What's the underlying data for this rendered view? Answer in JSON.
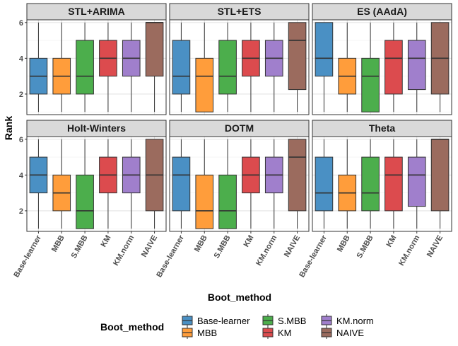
{
  "chart_data": {
    "type": "boxplot",
    "xlabel": "Boot_method",
    "ylabel": "Rank",
    "ylim": [
      0.85,
      6.15
    ],
    "yticks": [
      2,
      4,
      6
    ],
    "categories": [
      "Base-learner",
      "MBB",
      "S.MBB",
      "KM",
      "KM.norm",
      "NAIVE"
    ],
    "colors": [
      "#4a90c4",
      "#ff9d3b",
      "#4cae4c",
      "#dc4b4e",
      "#a07fcc",
      "#9b6b5e"
    ],
    "legend": {
      "title": "Boot_method",
      "position": "bottom",
      "entries": [
        "Base-learner",
        "MBB",
        "S.MBB",
        "KM",
        "KM.norm",
        "NAIVE"
      ]
    },
    "panels": [
      {
        "title": "STL+ARIMA",
        "boxes": [
          {
            "min": 1,
            "q1": 2,
            "median": 3,
            "q3": 4,
            "max": 6
          },
          {
            "min": 1,
            "q1": 2,
            "median": 3,
            "q3": 4,
            "max": 6
          },
          {
            "min": 1,
            "q1": 2,
            "median": 3,
            "q3": 5,
            "max": 6
          },
          {
            "min": 1,
            "q1": 3,
            "median": 4,
            "q3": 5,
            "max": 6
          },
          {
            "min": 1,
            "q1": 3,
            "median": 4,
            "q3": 5,
            "max": 6
          },
          {
            "min": 1,
            "q1": 3,
            "median": 6,
            "q3": 6,
            "max": 6
          }
        ]
      },
      {
        "title": "STL+ETS",
        "boxes": [
          {
            "min": 1,
            "q1": 2,
            "median": 3,
            "q3": 5,
            "max": 6
          },
          {
            "min": 1,
            "q1": 1,
            "median": 3,
            "q3": 4,
            "max": 6
          },
          {
            "min": 1,
            "q1": 2,
            "median": 3,
            "q3": 5,
            "max": 6
          },
          {
            "min": 1,
            "q1": 3,
            "median": 4,
            "q3": 5,
            "max": 6
          },
          {
            "min": 1,
            "q1": 3,
            "median": 4,
            "q3": 5,
            "max": 6
          },
          {
            "min": 1,
            "q1": 2.25,
            "median": 5,
            "q3": 6,
            "max": 6
          }
        ]
      },
      {
        "title": "ES (AAdA)",
        "boxes": [
          {
            "min": 1,
            "q1": 3,
            "median": 4,
            "q3": 6,
            "max": 6
          },
          {
            "min": 1,
            "q1": 2,
            "median": 3,
            "q3": 4,
            "max": 6
          },
          {
            "min": 1,
            "q1": 1,
            "median": 3,
            "q3": 4,
            "max": 6
          },
          {
            "min": 1,
            "q1": 2,
            "median": 4,
            "q3": 5,
            "max": 6
          },
          {
            "min": 1,
            "q1": 2.25,
            "median": 4,
            "q3": 5,
            "max": 6
          },
          {
            "min": 1,
            "q1": 2,
            "median": 4,
            "q3": 6,
            "max": 6
          }
        ]
      },
      {
        "title": "Holt-Winters",
        "boxes": [
          {
            "min": 1,
            "q1": 3,
            "median": 4,
            "q3": 5,
            "max": 6
          },
          {
            "min": 1,
            "q1": 2,
            "median": 3,
            "q3": 4,
            "max": 6
          },
          {
            "min": 1,
            "q1": 1,
            "median": 2,
            "q3": 4,
            "max": 6
          },
          {
            "min": 1,
            "q1": 3,
            "median": 4,
            "q3": 5,
            "max": 6
          },
          {
            "min": 1,
            "q1": 3,
            "median": 4,
            "q3": 5,
            "max": 6
          },
          {
            "min": 1,
            "q1": 2,
            "median": 4,
            "q3": 6,
            "max": 6
          }
        ]
      },
      {
        "title": "DOTM",
        "boxes": [
          {
            "min": 1,
            "q1": 2,
            "median": 4,
            "q3": 5,
            "max": 6
          },
          {
            "min": 1,
            "q1": 1,
            "median": 2,
            "q3": 4,
            "max": 6
          },
          {
            "min": 1,
            "q1": 1,
            "median": 2,
            "q3": 4,
            "max": 6
          },
          {
            "min": 1,
            "q1": 3,
            "median": 4,
            "q3": 5,
            "max": 6
          },
          {
            "min": 1,
            "q1": 3,
            "median": 4,
            "q3": 5,
            "max": 6
          },
          {
            "min": 1,
            "q1": 2,
            "median": 5,
            "q3": 6,
            "max": 6
          }
        ]
      },
      {
        "title": "Theta",
        "boxes": [
          {
            "min": 1,
            "q1": 2,
            "median": 3,
            "q3": 5,
            "max": 6
          },
          {
            "min": 1,
            "q1": 2,
            "median": 3,
            "q3": 4,
            "max": 6
          },
          {
            "min": 1,
            "q1": 2,
            "median": 3,
            "q3": 5,
            "max": 6
          },
          {
            "min": 1,
            "q1": 2,
            "median": 4,
            "q3": 5,
            "max": 6
          },
          {
            "min": 1,
            "q1": 2.25,
            "median": 4,
            "q3": 5,
            "max": 6
          },
          {
            "min": 1,
            "q1": 2,
            "median": 6,
            "q3": 6,
            "max": 6
          }
        ]
      }
    ]
  }
}
